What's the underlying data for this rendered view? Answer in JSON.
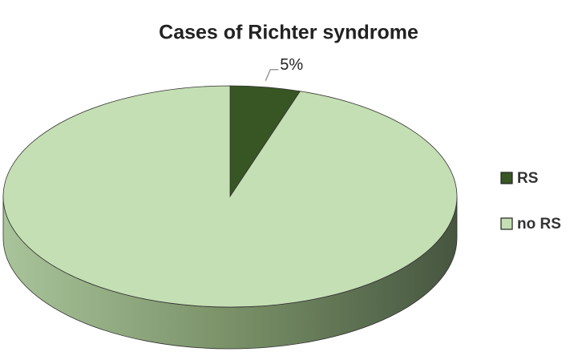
{
  "chart_data": {
    "type": "pie",
    "title": "Cases of Richter syndrome",
    "categories": [
      "RS",
      "no RS"
    ],
    "values": [
      5,
      95
    ],
    "value_labels": [
      "5%",
      null
    ],
    "colors": [
      "#375623",
      "#c4dfb3"
    ],
    "legend": "right"
  }
}
